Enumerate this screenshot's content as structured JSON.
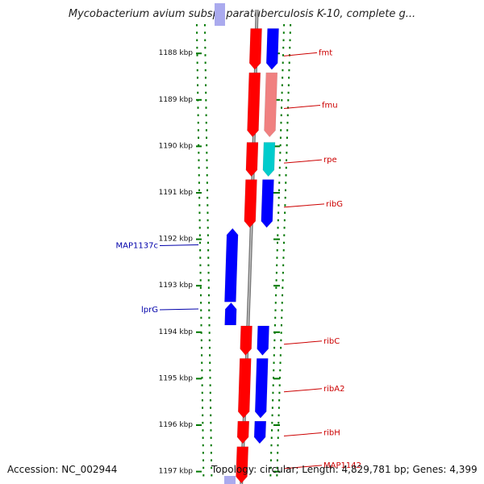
{
  "title": "Mycobacterium avium subsp. paratuberculosis K-10, complete g...",
  "footer": {
    "accession_label": "Accession:",
    "accession": "NC_002944",
    "topology_text": "Topology: circular; Length: 4,829,781 bp; Genes: 4,399"
  },
  "colors": {
    "forward_gene": "#ff0000",
    "reverse_gene": "#0000ff",
    "forward_cds": "#f08080",
    "rna_feature": "#00cccc",
    "label_forward": "#cc0000",
    "label_reverse": "#0000aa",
    "backbone": "#888888",
    "tick_dots": "#007700"
  },
  "chart_data": {
    "type": "genome-map",
    "unit": "kbp",
    "axis_ticks": [
      {
        "kbp": 1188,
        "label": "1188 kbp"
      },
      {
        "kbp": 1189,
        "label": "1189 kbp"
      },
      {
        "kbp": 1190,
        "label": "1190 kbp"
      },
      {
        "kbp": 1191,
        "label": "1191 kbp"
      },
      {
        "kbp": 1192,
        "label": "1192 kbp"
      },
      {
        "kbp": 1193,
        "label": "1193 kbp"
      },
      {
        "kbp": 1194,
        "label": "1194 kbp"
      },
      {
        "kbp": 1195,
        "label": "1195 kbp"
      },
      {
        "kbp": 1196,
        "label": "1196 kbp"
      },
      {
        "kbp": 1197,
        "label": "1197 kbp"
      }
    ],
    "range_kbp": [
      1187.25,
      1197.25
    ],
    "genes": [
      {
        "name": "",
        "strand": "-",
        "start": 1187.2,
        "end": 1187.3
      },
      {
        "name": "fmt",
        "strand": "+",
        "start": 1187.5,
        "end": 1188.4
      },
      {
        "name": "fmu",
        "strand": "+",
        "start": 1188.45,
        "end": 1189.85
      },
      {
        "name": "rpe",
        "strand": "+",
        "start": 1189.95,
        "end": 1190.7
      },
      {
        "name": "ribG",
        "strand": "+",
        "start": 1190.75,
        "end": 1191.8
      },
      {
        "name": "MAP1137c",
        "strand": "-",
        "start": 1191.8,
        "end": 1193.4
      },
      {
        "name": "lprG",
        "strand": "-",
        "start": 1193.4,
        "end": 1193.9
      },
      {
        "name": "ribC",
        "strand": "+",
        "start": 1193.9,
        "end": 1194.55
      },
      {
        "name": "ribA2",
        "strand": "+",
        "start": 1194.6,
        "end": 1195.9
      },
      {
        "name": "ribH",
        "strand": "+",
        "start": 1195.95,
        "end": 1196.45
      },
      {
        "name": "MAP1142",
        "strand": "+",
        "start": 1196.5,
        "end": 1197.3
      }
    ],
    "features": [
      {
        "gene": "fmt",
        "kind": "gene",
        "start": 1187.5,
        "end": 1188.4
      },
      {
        "gene": "fmt",
        "kind": "CDS",
        "start": 1187.5,
        "end": 1188.4
      },
      {
        "gene": "fmu",
        "kind": "gene",
        "start": 1188.45,
        "end": 1189.85
      },
      {
        "gene": "fmu",
        "kind": "CDS",
        "start": 1188.45,
        "end": 1189.85
      },
      {
        "gene": "rpe",
        "kind": "gene",
        "start": 1189.95,
        "end": 1190.7
      },
      {
        "gene": "rpe",
        "kind": "RNA",
        "start": 1189.95,
        "end": 1190.7
      },
      {
        "gene": "ribG",
        "kind": "gene",
        "start": 1190.75,
        "end": 1191.8
      },
      {
        "gene": "ribG",
        "kind": "CDS",
        "start": 1190.75,
        "end": 1191.8
      },
      {
        "gene": "MAP1137c",
        "kind": "gene",
        "start": 1191.8,
        "end": 1193.4
      },
      {
        "gene": "lprG",
        "kind": "gene",
        "start": 1193.4,
        "end": 1193.9
      },
      {
        "gene": "ribC",
        "kind": "gene",
        "start": 1193.9,
        "end": 1194.55
      },
      {
        "gene": "ribC",
        "kind": "CDS",
        "start": 1193.9,
        "end": 1194.55
      },
      {
        "gene": "ribA2",
        "kind": "gene",
        "start": 1194.6,
        "end": 1195.9
      },
      {
        "gene": "ribA2",
        "kind": "CDS",
        "start": 1194.6,
        "end": 1195.9
      },
      {
        "gene": "ribH",
        "kind": "gene",
        "start": 1195.95,
        "end": 1196.45
      },
      {
        "gene": "ribH",
        "kind": "CDS",
        "start": 1195.95,
        "end": 1196.45
      },
      {
        "gene": "MAP1142",
        "kind": "gene",
        "start": 1196.5,
        "end": 1197.3
      }
    ]
  }
}
